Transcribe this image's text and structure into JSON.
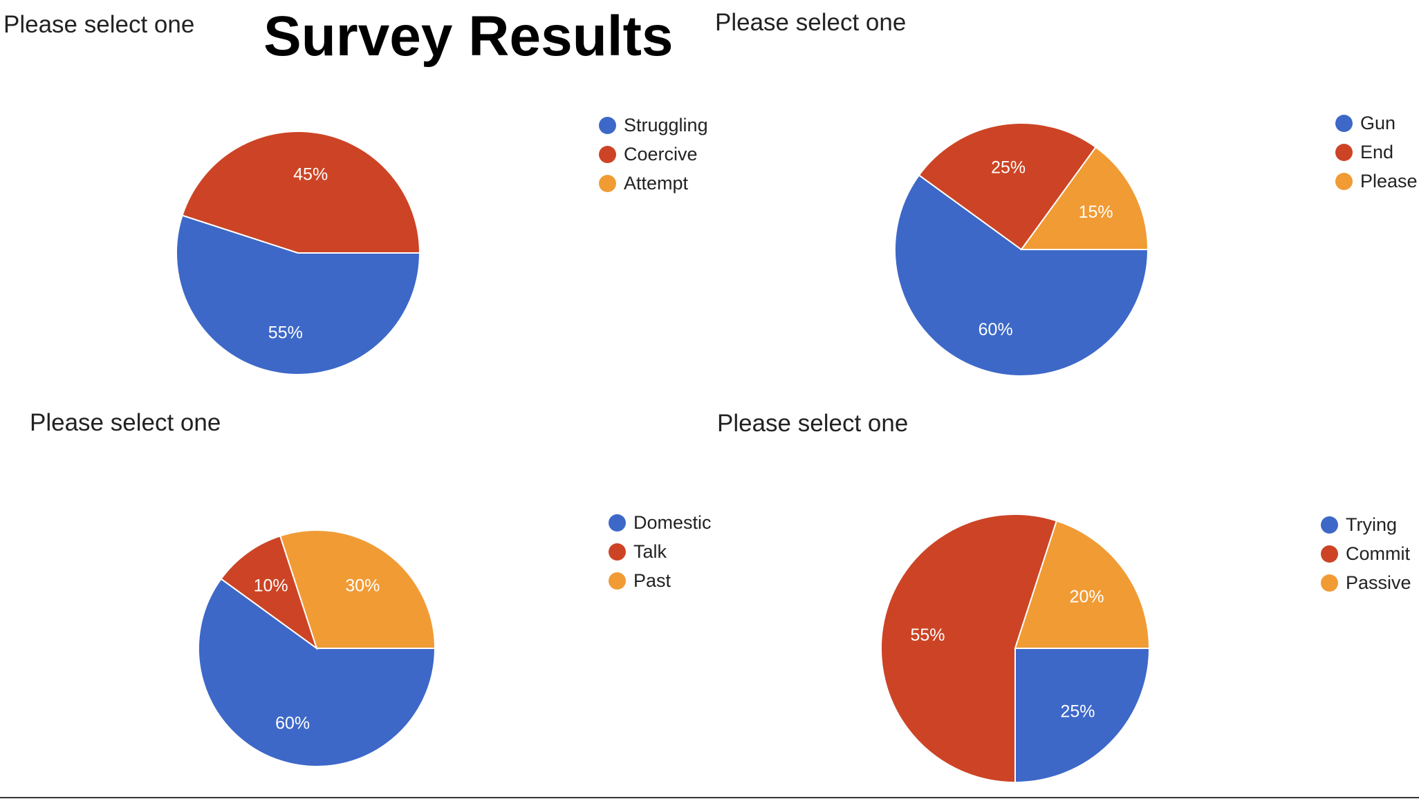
{
  "page": {
    "title": "Survey Results"
  },
  "chart_data": [
    {
      "type": "pie",
      "title": "Please select one",
      "categories": [
        "Struggling",
        "Coercive",
        "Attempt"
      ],
      "values": [
        55,
        45,
        0
      ],
      "labels": [
        "55%",
        "45%",
        ""
      ],
      "colors": [
        "#3d68c8",
        "#cc4425",
        "#f19b35"
      ]
    },
    {
      "type": "pie",
      "title": "Please select one",
      "categories": [
        "Gun",
        "End",
        "Please"
      ],
      "values": [
        60,
        25,
        15
      ],
      "labels": [
        "60%",
        "25%",
        "15%"
      ],
      "colors": [
        "#3d68c8",
        "#cc4425",
        "#f19b35"
      ]
    },
    {
      "type": "pie",
      "title": "Please select one",
      "categories": [
        "Domestic",
        "Talk",
        "Past"
      ],
      "values": [
        60,
        10,
        30
      ],
      "labels": [
        "60%",
        "10%",
        "30%"
      ],
      "colors": [
        "#3d68c8",
        "#cc4425",
        "#f19b35"
      ]
    },
    {
      "type": "pie",
      "title": "Please select one",
      "categories": [
        "Trying",
        "Commit",
        "Passive"
      ],
      "values": [
        25,
        55,
        20
      ],
      "labels": [
        "25%",
        "55%",
        "20%"
      ],
      "colors": [
        "#3d68c8",
        "#cc4425",
        "#f19b35"
      ]
    }
  ]
}
